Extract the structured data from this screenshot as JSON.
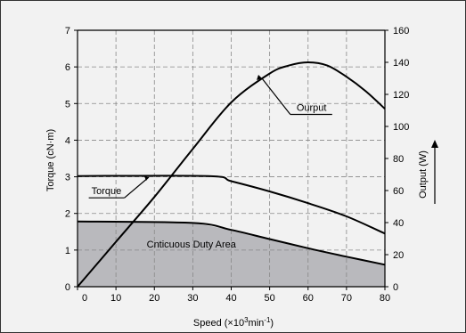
{
  "chart_data": {
    "type": "line",
    "xlabel_parts": {
      "prefix": "Speed (×10",
      "sup1": "3",
      "mid": "min",
      "sup2": "-1",
      "suffix": ")"
    },
    "ylabel_left": "Torque (cN·m)",
    "ylabel_right": "Output (W)",
    "xlim": [
      0,
      80
    ],
    "ylim_left": [
      0,
      7
    ],
    "ylim_right": [
      0,
      160
    ],
    "x_ticks": [
      0,
      10,
      20,
      30,
      40,
      50,
      60,
      70,
      80
    ],
    "y_left_ticks": [
      0,
      1,
      2,
      3,
      4,
      5,
      6,
      7
    ],
    "y_right_ticks": [
      0,
      20,
      40,
      60,
      80,
      100,
      120,
      140,
      160
    ],
    "grid": true,
    "series": [
      {
        "name": "Torque",
        "axis": "left",
        "x": [
          0,
          34,
          40,
          50,
          60,
          70,
          80
        ],
        "y": [
          3.02,
          3.02,
          2.88,
          2.6,
          2.28,
          1.92,
          1.45
        ]
      },
      {
        "name": "Ourput",
        "axis": "right",
        "x": [
          0,
          10,
          20,
          30,
          40,
          50,
          55,
          60,
          65,
          70,
          75,
          80
        ],
        "y": [
          0,
          28,
          56,
          86,
          115,
          133,
          138,
          140,
          138,
          131,
          122,
          111
        ]
      },
      {
        "name": "Cnticuous Duty Area",
        "axis": "left",
        "fill": true,
        "x": [
          0,
          30,
          40,
          50,
          60,
          70,
          80
        ],
        "y": [
          1.78,
          1.74,
          1.55,
          1.3,
          1.05,
          0.82,
          0.6
        ]
      }
    ],
    "annotations": [
      {
        "text": "Ourput",
        "x": 57,
        "y_left": 4.8
      },
      {
        "text": "Torque",
        "x": 2,
        "y_left": 2.62
      },
      {
        "text": "Cnticuous Duty Area",
        "x": 18,
        "y_left": 1.0
      }
    ],
    "colors": {
      "background": "#f2f2f2",
      "area": "#b9b9bd",
      "line": "#000000",
      "grid": "#888888"
    }
  }
}
